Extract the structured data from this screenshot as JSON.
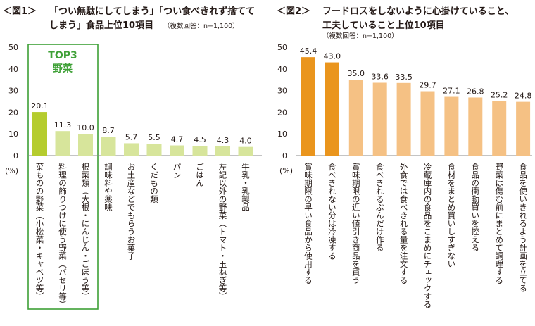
{
  "colors": {
    "highlight_green": "#b5cc2e",
    "light_green": "#d7e59b",
    "orange_dark": "#ea951d",
    "orange_light": "#f5c184",
    "frame_green": "#3ea036",
    "top3_text": "#3ea036",
    "axis": "#888888"
  },
  "chart_data": [
    {
      "type": "bar",
      "figure_label": "＜図1＞",
      "title_line1": "「つい無駄にしてしまう」「つい食べきれず捨てて",
      "title_line2": "しまう」食品上位10項目",
      "note": "（複数回答：n=1,100）",
      "ylabel": "(%)",
      "ylim": [
        0,
        50
      ],
      "yticks": [
        "50",
        "40",
        "30",
        "20",
        "10",
        "0"
      ],
      "top3_label": "TOP3",
      "top3_sub": "野菜",
      "categories": [
        "菜ものの野菜（小松菜・キャベツ等）",
        "料理の飾りつけに使う野菜（パセリ等）",
        "根菜類（大根・にんじん・ごぼう等）",
        "調味料や薬味",
        "お土産などでもらうお菓子",
        "くだもの類",
        "パン",
        "ごはん",
        "左記以外の野菜（トマト・玉ねぎ等）",
        "牛乳・乳製品"
      ],
      "values": [
        20.1,
        11.3,
        10.0,
        8.7,
        5.7,
        5.5,
        4.7,
        4.5,
        4.3,
        4.0
      ],
      "value_labels": [
        "20.1",
        "11.3",
        "10.0",
        "8.7",
        "5.7",
        "5.5",
        "4.7",
        "4.5",
        "4.3",
        "4.0"
      ]
    },
    {
      "type": "bar",
      "figure_label": "＜図2＞",
      "title_line1": "フードロスをしないように心掛けていること、",
      "title_line2": "工夫していること上位10項目",
      "note": "（複数回答：n=1,100）",
      "ylabel": "(%)",
      "ylim": [
        0,
        50
      ],
      "yticks": [
        "50",
        "40",
        "30",
        "20",
        "10",
        "0"
      ],
      "categories": [
        "賞味期限の早い食品から使用する",
        "食べきれない分は冷凍する",
        "賞味期限の近い値引き商品を買う",
        "食べきれるぶんだけ作る",
        "外食では食べきれる量を注文する",
        "冷蔵庫内の食品をこまめにチェックする",
        "食材をまとめ買いしすぎない",
        "食品の衝動買いを控える",
        "野菜は傷む前にまとめて調理する",
        "食品を使いきれるよう計画を立てる"
      ],
      "values": [
        45.4,
        43.0,
        35.0,
        33.6,
        33.5,
        29.7,
        27.1,
        26.8,
        25.2,
        24.8
      ],
      "value_labels": [
        "45.4",
        "43.0",
        "35.0",
        "33.6",
        "33.5",
        "29.7",
        "27.1",
        "26.8",
        "25.2",
        "24.8"
      ]
    }
  ]
}
